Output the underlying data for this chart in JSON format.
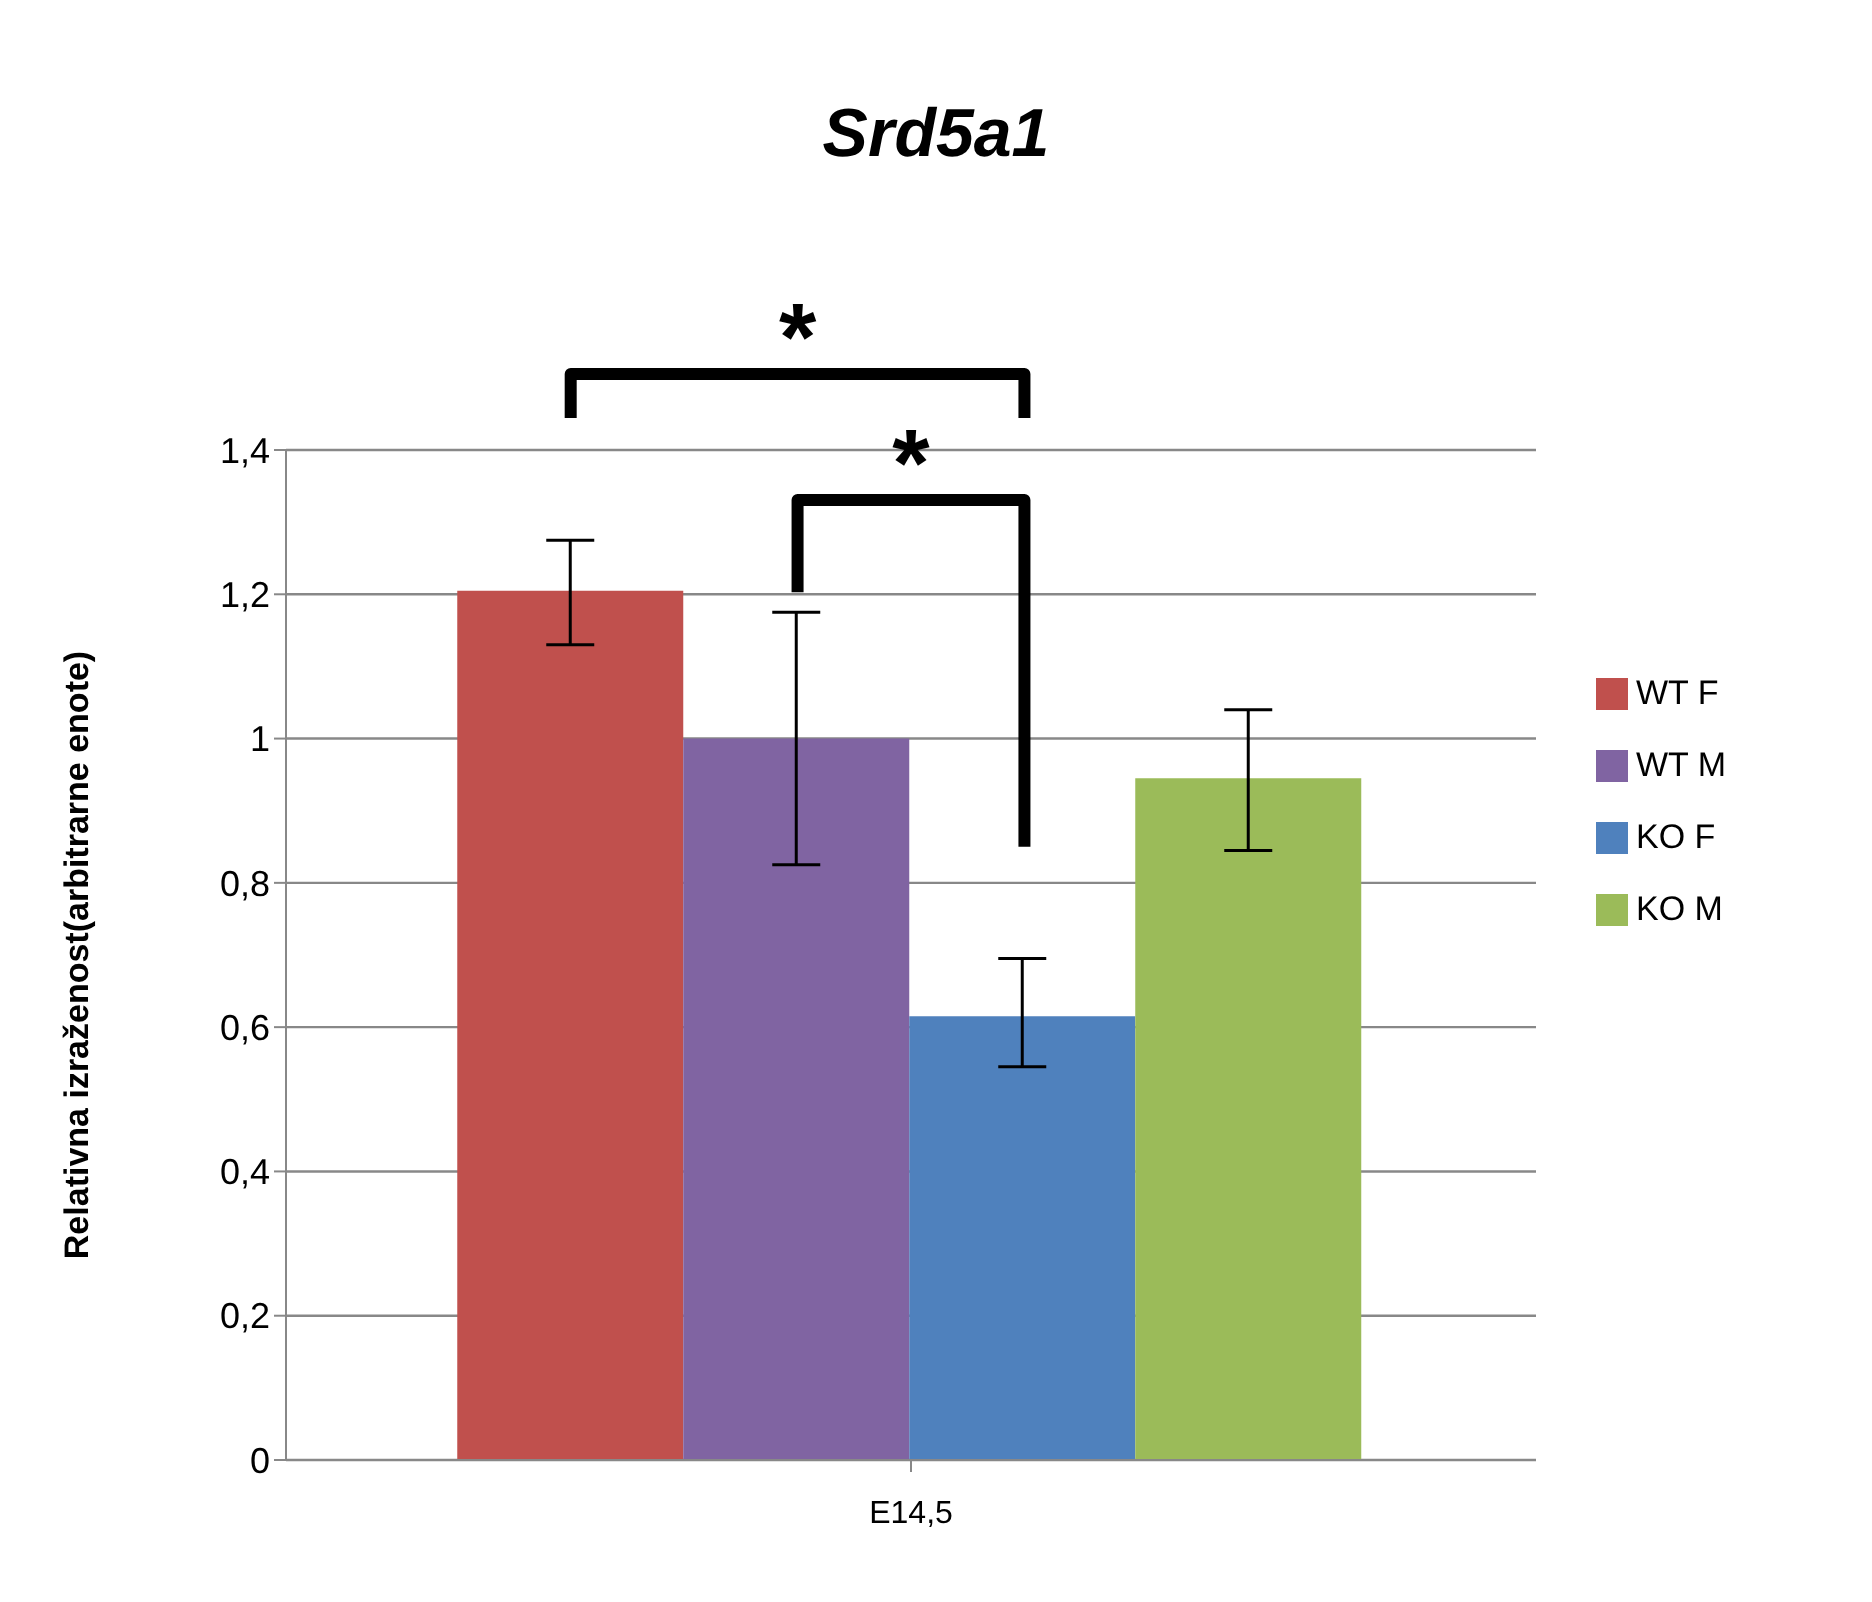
{
  "chart_data": {
    "type": "bar",
    "title": "Srd5a1",
    "ylabel": "Relativna izraženost(arbitrarne  enote)",
    "categories": [
      "E14,5"
    ],
    "series": [
      {
        "name": "WT F",
        "color": "#c0504d",
        "values": [
          1.205
        ],
        "errors": [
          [
            1.13,
            1.275
          ]
        ]
      },
      {
        "name": "WT M",
        "color": "#8064a2",
        "values": [
          1.0
        ],
        "errors": [
          [
            0.825,
            1.175
          ]
        ]
      },
      {
        "name": "KO F",
        "color": "#4f81bd",
        "values": [
          0.615
        ],
        "errors": [
          [
            0.545,
            0.695
          ]
        ]
      },
      {
        "name": "KO M",
        "color": "#9bbb59",
        "values": [
          0.945
        ],
        "errors": [
          [
            0.845,
            1.04
          ]
        ]
      }
    ],
    "ylim": [
      0,
      1.4
    ],
    "yticks": [
      {
        "value": 0,
        "label": "0"
      },
      {
        "value": 0.2,
        "label": "0,2"
      },
      {
        "value": 0.4,
        "label": "0,4"
      },
      {
        "value": 0.6,
        "label": "0,6"
      },
      {
        "value": 0.8,
        "label": "0,8"
      },
      {
        "value": 1,
        "label": "1"
      },
      {
        "value": 1.2,
        "label": "1,2"
      },
      {
        "value": 1.4,
        "label": "1,4"
      }
    ],
    "grid": "y",
    "legend": "right",
    "annotations": [
      "*",
      "*"
    ]
  }
}
